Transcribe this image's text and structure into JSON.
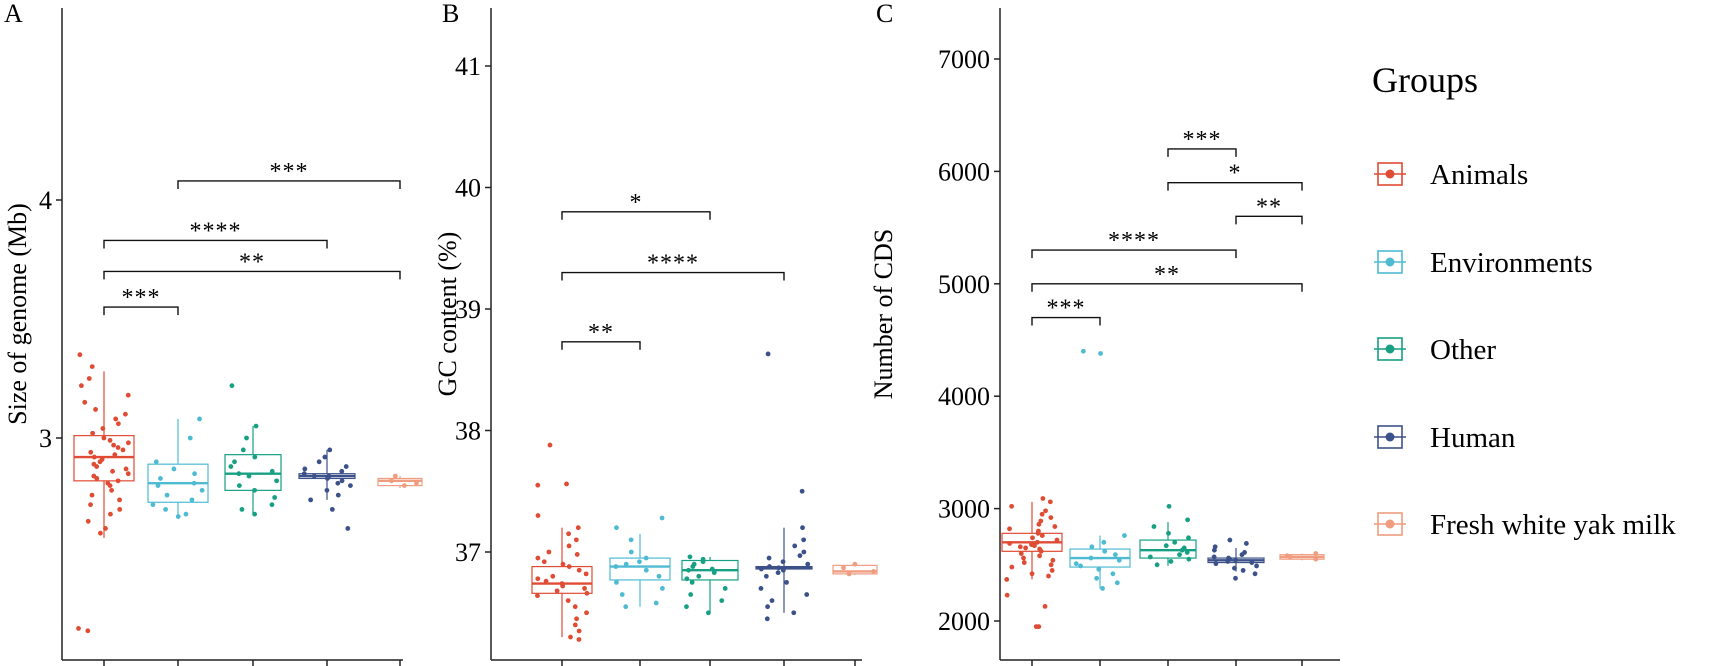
{
  "chart_data": [
    {
      "type": "box",
      "panel_label": "A",
      "ylabel": "Size of genome (Mb)",
      "yticks": [
        3,
        4
      ],
      "ylim": [
        2.1,
        4.95
      ],
      "groups": [
        {
          "name": "Animals",
          "color": "#E04B34",
          "q1": 2.82,
          "median": 2.92,
          "q3": 3.01,
          "whisker_low": 2.58,
          "whisker_high": 3.28,
          "points": [
            2.2,
            2.19,
            3.35,
            3.3,
            3.25,
            3.22,
            3.18,
            3.15,
            3.12,
            3.1,
            3.08,
            3.06,
            3.04,
            3.02,
            3.0,
            2.99,
            2.98,
            2.97,
            2.96,
            2.95,
            2.94,
            2.93,
            2.92,
            2.91,
            2.9,
            2.89,
            2.88,
            2.87,
            2.86,
            2.85,
            2.84,
            2.83,
            2.82,
            2.81,
            2.8,
            2.78,
            2.76,
            2.74,
            2.72,
            2.7,
            2.68,
            2.65,
            2.62,
            2.6
          ]
        },
        {
          "name": "Environments",
          "color": "#4EBBD3",
          "q1": 2.73,
          "median": 2.81,
          "q3": 2.89,
          "whisker_low": 2.67,
          "whisker_high": 3.08,
          "points": [
            3.08,
            3.0,
            2.9,
            2.87,
            2.85,
            2.83,
            2.81,
            2.8,
            2.78,
            2.76,
            2.74,
            2.72,
            2.7,
            2.68,
            2.67
          ]
        },
        {
          "name": "Other",
          "color": "#17A083",
          "q1": 2.78,
          "median": 2.85,
          "q3": 2.93,
          "whisker_low": 2.68,
          "whisker_high": 3.05,
          "points": [
            3.22,
            3.05,
            3.0,
            2.95,
            2.92,
            2.9,
            2.88,
            2.86,
            2.85,
            2.84,
            2.82,
            2.8,
            2.78,
            2.75,
            2.72,
            2.7,
            2.68
          ]
        },
        {
          "name": "Human",
          "color": "#3C5189",
          "q1": 2.83,
          "median": 2.84,
          "q3": 2.85,
          "whisker_low": 2.74,
          "whisker_high": 2.95,
          "points": [
            2.95,
            2.92,
            2.9,
            2.88,
            2.87,
            2.86,
            2.85,
            2.84,
            2.84,
            2.83,
            2.82,
            2.81,
            2.8,
            2.78,
            2.76,
            2.74,
            2.7,
            2.62
          ]
        },
        {
          "name": "Fresh white yak milk",
          "color": "#F09C7F",
          "q1": 2.8,
          "median": 2.82,
          "q3": 2.83,
          "whisker_low": 2.79,
          "whisker_high": 2.84,
          "points": [
            2.84,
            2.82,
            2.81,
            2.8
          ]
        }
      ],
      "brackets": [
        {
          "from": 1,
          "to": 4,
          "y": 4.08,
          "label": "***"
        },
        {
          "from": 0,
          "to": 3,
          "y": 3.83,
          "label": "****"
        },
        {
          "from": 0,
          "to": 4,
          "y": 3.7,
          "label": "**"
        },
        {
          "from": 0,
          "to": 1,
          "y": 3.55,
          "label": "***"
        }
      ]
    },
    {
      "type": "box",
      "panel_label": "B",
      "ylabel": "GC content  (%)",
      "yticks": [
        37,
        38,
        39,
        40,
        41
      ],
      "ylim": [
        36.2,
        41.5
      ],
      "groups": [
        {
          "name": "Animals",
          "color": "#E04B34",
          "q1": 36.66,
          "median": 36.74,
          "q3": 36.88,
          "whisker_low": 36.3,
          "whisker_high": 37.2,
          "points": [
            37.88,
            37.56,
            37.55,
            37.3,
            37.2,
            37.15,
            37.1,
            37.05,
            37.0,
            36.98,
            36.95,
            36.92,
            36.9,
            36.88,
            36.85,
            36.82,
            36.8,
            36.78,
            36.76,
            36.74,
            36.72,
            36.7,
            36.68,
            36.66,
            36.64,
            36.6,
            36.55,
            36.5,
            36.45,
            36.4,
            36.35,
            36.3,
            36.28
          ]
        },
        {
          "name": "Environments",
          "color": "#4EBBD3",
          "q1": 36.77,
          "median": 36.88,
          "q3": 36.95,
          "whisker_low": 36.55,
          "whisker_high": 37.15,
          "points": [
            37.28,
            37.2,
            37.1,
            37.0,
            36.95,
            36.92,
            36.9,
            36.88,
            36.85,
            36.8,
            36.75,
            36.7,
            36.65,
            36.58,
            36.55
          ]
        },
        {
          "name": "Other",
          "color": "#17A083",
          "q1": 36.77,
          "median": 36.85,
          "q3": 36.93,
          "whisker_low": 36.5,
          "whisker_high": 36.96,
          "points": [
            36.96,
            36.94,
            36.92,
            36.9,
            36.88,
            36.86,
            36.85,
            36.83,
            36.8,
            36.78,
            36.75,
            36.7,
            36.65,
            36.6,
            36.55,
            36.5
          ]
        },
        {
          "name": "Human",
          "color": "#3C5189",
          "q1": 36.86,
          "median": 36.87,
          "q3": 36.88,
          "whisker_low": 36.5,
          "whisker_high": 37.2,
          "points": [
            38.63,
            37.5,
            37.2,
            37.1,
            37.05,
            37.0,
            36.97,
            36.95,
            36.92,
            36.9,
            36.88,
            36.87,
            36.86,
            36.85,
            36.83,
            36.8,
            36.75,
            36.7,
            36.65,
            36.6,
            36.55,
            36.5,
            36.45
          ]
        },
        {
          "name": "Fresh white yak milk",
          "color": "#F09C7F",
          "q1": 36.82,
          "median": 36.84,
          "q3": 36.89,
          "whisker_low": 36.81,
          "whisker_high": 36.9,
          "points": [
            36.9,
            36.87,
            36.84,
            36.82
          ]
        }
      ],
      "brackets": [
        {
          "from": 0,
          "to": 2,
          "y": 39.8,
          "label": "*"
        },
        {
          "from": 0,
          "to": 3,
          "y": 39.3,
          "label": "****"
        },
        {
          "from": 0,
          "to": 1,
          "y": 38.73,
          "label": "**"
        }
      ]
    },
    {
      "type": "box",
      "panel_label": "C",
      "ylabel": "Number of CDS",
      "yticks": [
        2000,
        3000,
        4000,
        5000,
        6000,
        7000
      ],
      "ylim": [
        1850,
        7500
      ],
      "groups": [
        {
          "name": "Animals",
          "color": "#E04B34",
          "q1": 2620,
          "median": 2700,
          "q3": 2780,
          "whisker_low": 2370,
          "whisker_high": 3060,
          "points": [
            1950,
            1950,
            2130,
            2230,
            3090,
            3060,
            3020,
            2980,
            2950,
            2920,
            2890,
            2860,
            2840,
            2820,
            2800,
            2780,
            2760,
            2740,
            2720,
            2700,
            2690,
            2680,
            2670,
            2660,
            2650,
            2640,
            2620,
            2600,
            2580,
            2560,
            2540,
            2520,
            2500,
            2480,
            2450,
            2420,
            2400,
            2370
          ]
        },
        {
          "name": "Environments",
          "color": "#4EBBD3",
          "q1": 2480,
          "median": 2560,
          "q3": 2640,
          "whisker_low": 2290,
          "whisker_high": 2760,
          "points": [
            4400,
            4380,
            2760,
            2700,
            2660,
            2620,
            2590,
            2560,
            2540,
            2510,
            2490,
            2460,
            2420,
            2380,
            2340,
            2290
          ]
        },
        {
          "name": "Other",
          "color": "#17A083",
          "q1": 2560,
          "median": 2630,
          "q3": 2720,
          "whisker_low": 2490,
          "whisker_high": 2880,
          "points": [
            3020,
            2900,
            2840,
            2780,
            2740,
            2700,
            2670,
            2650,
            2630,
            2610,
            2590,
            2570,
            2550,
            2530,
            2500
          ]
        },
        {
          "name": "Human",
          "color": "#3C5189",
          "q1": 2520,
          "median": 2540,
          "q3": 2560,
          "whisker_low": 2440,
          "whisker_high": 2650,
          "points": [
            2720,
            2690,
            2660,
            2630,
            2610,
            2590,
            2570,
            2560,
            2550,
            2540,
            2530,
            2520,
            2510,
            2490,
            2470,
            2450,
            2420,
            2380
          ]
        },
        {
          "name": "Fresh white yak milk",
          "color": "#F09C7F",
          "q1": 2550,
          "median": 2570,
          "q3": 2590,
          "whisker_low": 2540,
          "whisker_high": 2600,
          "points": [
            2600,
            2580,
            2570,
            2550
          ]
        }
      ],
      "brackets": [
        {
          "from": 2,
          "to": 3,
          "y": 6200,
          "label": "***"
        },
        {
          "from": 2,
          "to": 4,
          "y": 5900,
          "label": "*"
        },
        {
          "from": 3,
          "to": 4,
          "y": 5600,
          "label": "**"
        },
        {
          "from": 0,
          "to": 3,
          "y": 5300,
          "label": "****"
        },
        {
          "from": 0,
          "to": 4,
          "y": 5000,
          "label": "**"
        },
        {
          "from": 0,
          "to": 1,
          "y": 4700,
          "label": "***"
        }
      ]
    }
  ],
  "legend": {
    "title": "Groups",
    "items": [
      "Animals",
      "Environments",
      "Other",
      "Human",
      "Fresh white yak milk"
    ]
  }
}
